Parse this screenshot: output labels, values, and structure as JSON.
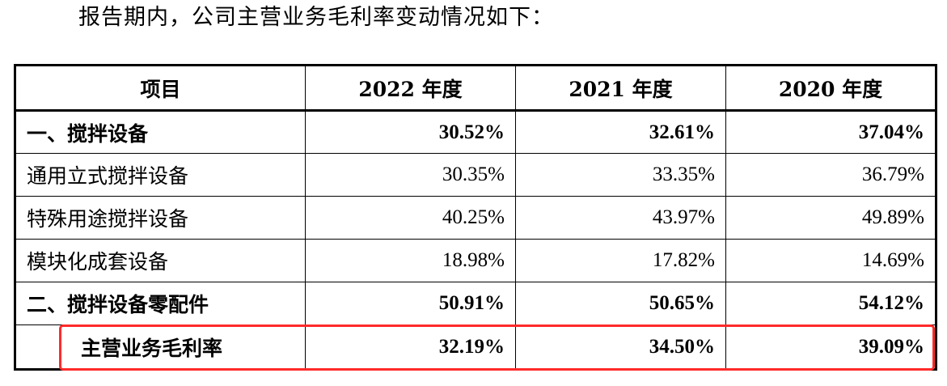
{
  "intro_text": "报告期内，公司主营业务毛利率变动情况如下：",
  "table": {
    "headers": [
      "项目",
      "2022 年度",
      "2021 年度",
      "2020 年度"
    ],
    "rows": [
      {
        "label": "一、搅拌设备",
        "values": [
          "30.52%",
          "32.61%",
          "37.04%"
        ],
        "bold": true
      },
      {
        "label": "通用立式搅拌设备",
        "values": [
          "30.35%",
          "33.35%",
          "36.79%"
        ],
        "bold": false
      },
      {
        "label": "特殊用途搅拌设备",
        "values": [
          "40.25%",
          "43.97%",
          "49.89%"
        ],
        "bold": false
      },
      {
        "label": "模块化成套设备",
        "values": [
          "18.98%",
          "17.82%",
          "14.69%"
        ],
        "bold": false
      },
      {
        "label": "二、搅拌设备零配件",
        "values": [
          "50.91%",
          "50.65%",
          "54.12%"
        ],
        "bold": true
      },
      {
        "label": "主营业务毛利率",
        "values": [
          "32.19%",
          "34.50%",
          "39.09%"
        ],
        "bold": true
      }
    ]
  },
  "colors": {
    "highlight": "#ff2a2a",
    "border": "#000000",
    "text": "#000000"
  }
}
